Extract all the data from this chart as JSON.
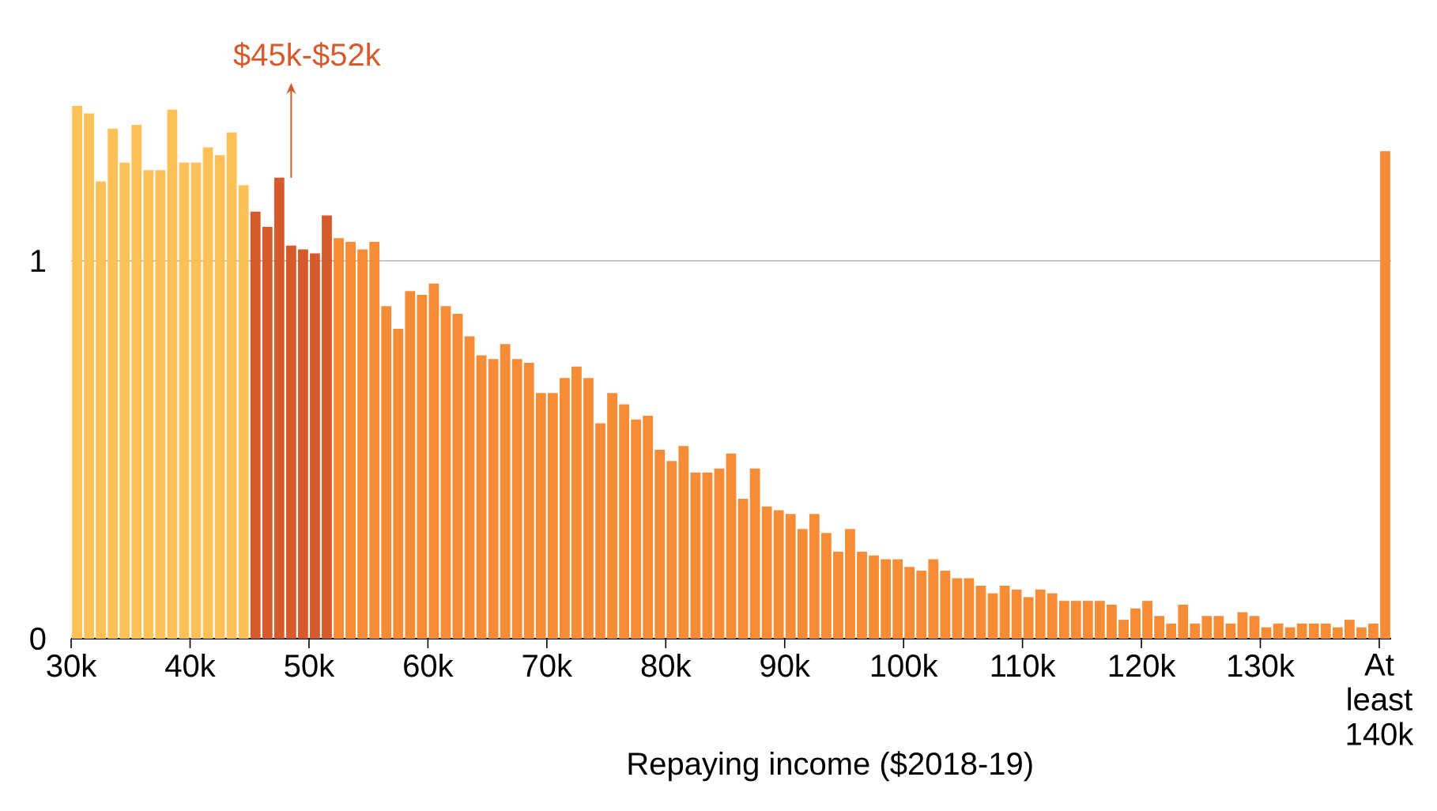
{
  "chart_data": {
    "type": "bar",
    "xlabel": "Repaying income ($2018-19)",
    "annotations": [
      {
        "text": "$45k-$52k",
        "x": 48.5,
        "y": 1.22
      }
    ],
    "x": [
      30.5,
      31.5,
      32.5,
      33.5,
      34.5,
      35.5,
      36.5,
      37.5,
      38.5,
      39.5,
      40.5,
      41.5,
      42.5,
      43.5,
      44.5,
      45.5,
      46.5,
      47.5,
      48.5,
      49.5,
      50.5,
      51.5,
      52.5,
      53.5,
      54.5,
      55.5,
      56.5,
      57.5,
      58.5,
      59.5,
      60.5,
      61.5,
      62.5,
      63.5,
      64.5,
      65.5,
      66.5,
      67.5,
      68.5,
      69.5,
      70.5,
      71.5,
      72.5,
      73.5,
      74.5,
      75.5,
      76.5,
      77.5,
      78.5,
      79.5,
      80.5,
      81.5,
      82.5,
      83.5,
      84.5,
      85.5,
      86.5,
      87.5,
      88.5,
      89.5,
      90.5,
      91.5,
      92.5,
      93.5,
      94.5,
      95.5,
      96.5,
      97.5,
      98.5,
      99.5,
      100.5,
      101.5,
      102.5,
      103.5,
      104.5,
      105.5,
      106.5,
      107.5,
      108.5,
      109.5,
      110.5,
      111.5,
      112.5,
      113.5,
      114.5,
      115.5,
      116.5,
      117.5,
      118.5,
      119.5,
      120.5,
      121.5,
      122.5,
      123.5,
      124.5,
      125.5,
      126.5,
      127.5,
      128.5,
      129.5,
      130.5,
      131.5,
      132.5,
      133.5,
      134.5,
      135.5,
      136.5,
      137.5,
      138.5,
      139.5,
      140.5
    ],
    "values": [
      1.41,
      1.39,
      1.21,
      1.35,
      1.26,
      1.36,
      1.24,
      1.24,
      1.4,
      1.26,
      1.26,
      1.3,
      1.28,
      1.34,
      1.2,
      1.13,
      1.09,
      1.22,
      1.04,
      1.03,
      1.02,
      1.12,
      1.06,
      1.05,
      1.03,
      1.05,
      0.88,
      0.82,
      0.92,
      0.91,
      0.94,
      0.88,
      0.86,
      0.8,
      0.75,
      0.74,
      0.78,
      0.74,
      0.73,
      0.65,
      0.65,
      0.69,
      0.72,
      0.69,
      0.57,
      0.65,
      0.62,
      0.58,
      0.59,
      0.5,
      0.47,
      0.51,
      0.44,
      0.44,
      0.45,
      0.49,
      0.37,
      0.45,
      0.35,
      0.34,
      0.33,
      0.29,
      0.33,
      0.28,
      0.23,
      0.29,
      0.23,
      0.22,
      0.21,
      0.21,
      0.19,
      0.18,
      0.21,
      0.18,
      0.16,
      0.16,
      0.14,
      0.12,
      0.14,
      0.13,
      0.11,
      0.13,
      0.12,
      0.1,
      0.1,
      0.1,
      0.1,
      0.09,
      0.05,
      0.08,
      0.1,
      0.06,
      0.04,
      0.09,
      0.04,
      0.06,
      0.06,
      0.04,
      0.07,
      0.06,
      0.03,
      0.04,
      0.03,
      0.04,
      0.04,
      0.04,
      0.03,
      0.05,
      0.03,
      0.04,
      1.29
    ],
    "colors": [
      "#fec157",
      "#fec157",
      "#fec157",
      "#fec157",
      "#fec157",
      "#fec157",
      "#fec157",
      "#fec157",
      "#fec157",
      "#fec157",
      "#fec157",
      "#fec157",
      "#fec157",
      "#fec157",
      "#fec157",
      "#d65a2c",
      "#d65a2c",
      "#d65a2c",
      "#d65a2c",
      "#d65a2c",
      "#d65a2c",
      "#d65a2c",
      "#f68c35",
      "#f68c35",
      "#f68c35",
      "#f68c35",
      "#f68c35",
      "#f68c35",
      "#f68c35",
      "#f68c35",
      "#f68c35",
      "#f68c35",
      "#f68c35",
      "#f68c35",
      "#f68c35",
      "#f68c35",
      "#f68c35",
      "#f68c35",
      "#f68c35",
      "#f68c35",
      "#f68c35",
      "#f68c35",
      "#f68c35",
      "#f68c35",
      "#f68c35",
      "#f68c35",
      "#f68c35",
      "#f68c35",
      "#f68c35",
      "#f68c35",
      "#f68c35",
      "#f68c35",
      "#f68c35",
      "#f68c35",
      "#f68c35",
      "#f68c35",
      "#f68c35",
      "#f68c35",
      "#f68c35",
      "#f68c35",
      "#f68c35",
      "#f68c35",
      "#f68c35",
      "#f68c35",
      "#f68c35",
      "#f68c35",
      "#f68c35",
      "#f68c35",
      "#f68c35",
      "#f68c35",
      "#f68c35",
      "#f68c35",
      "#f68c35",
      "#f68c35",
      "#f68c35",
      "#f68c35",
      "#f68c35",
      "#f68c35",
      "#f68c35",
      "#f68c35",
      "#f68c35",
      "#f68c35",
      "#f68c35",
      "#f68c35",
      "#f68c35",
      "#f68c35",
      "#f68c35",
      "#f68c35",
      "#f68c35",
      "#f68c35",
      "#f68c35",
      "#f68c35",
      "#f68c35",
      "#f68c35",
      "#f68c35",
      "#f68c35",
      "#f68c35",
      "#f68c35",
      "#f68c35",
      "#f68c35",
      "#f68c35",
      "#f68c35",
      "#f68c35",
      "#f68c35",
      "#f68c35",
      "#f68c35",
      "#f68c35",
      "#f68c35",
      "#f68c35",
      "#f68c35",
      "#f68c35"
    ],
    "xlim": [
      30,
      141
    ],
    "ylim": [
      0,
      1.41
    ],
    "xticks": [
      {
        "value": 30,
        "label": "30k"
      },
      {
        "value": 40,
        "label": "40k"
      },
      {
        "value": 50,
        "label": "50k"
      },
      {
        "value": 60,
        "label": "60k"
      },
      {
        "value": 70,
        "label": "70k"
      },
      {
        "value": 80,
        "label": "80k"
      },
      {
        "value": 90,
        "label": "90k"
      },
      {
        "value": 100,
        "label": "100k"
      },
      {
        "value": 110,
        "label": "110k"
      },
      {
        "value": 120,
        "label": "120k"
      },
      {
        "value": 130,
        "label": "130k"
      },
      {
        "value": 140,
        "label": "At least 140k"
      }
    ],
    "yticks": [
      0,
      1
    ],
    "grid": "y"
  }
}
